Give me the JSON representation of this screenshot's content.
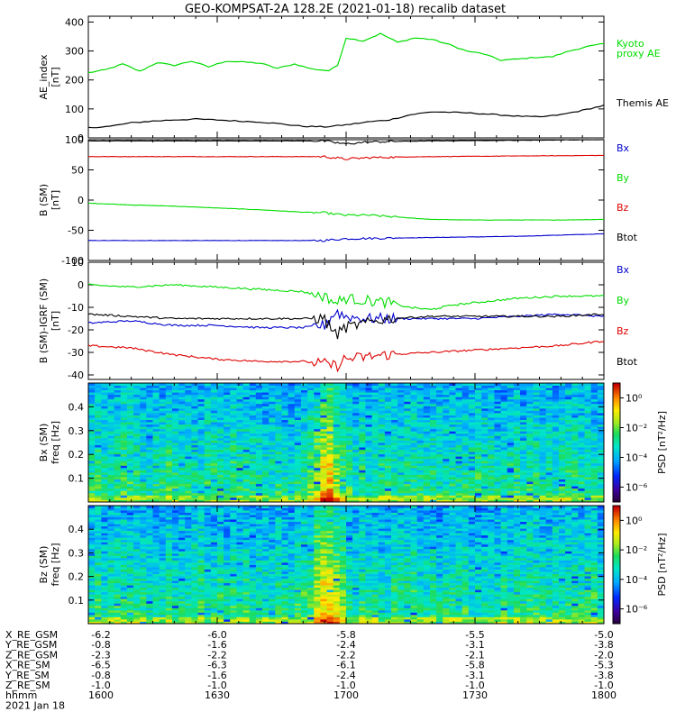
{
  "chart_data": {
    "title": "GEO-KOMPSAT-2A 128.2E (2021-01-18) recalib dataset",
    "type": "line",
    "panels": [
      {
        "id": "ae",
        "type": "line",
        "ylabel": [
          "AE_index",
          "[nT]"
        ],
        "ylim": [
          0,
          420
        ],
        "yticks": [
          0,
          100,
          200,
          300,
          400
        ],
        "series": [
          {
            "name": "Kyoto proxy AE",
            "label_lines": [
              "Kyoto",
              "proxy AE"
            ],
            "color": "#00dd00",
            "x": [
              1600,
              1604,
              1608,
              1612,
              1616,
              1620,
              1624,
              1628,
              1632,
              1636,
              1640,
              1644,
              1648,
              1652,
              1656,
              1658,
              1700,
              1704,
              1708,
              1712,
              1716,
              1720,
              1724,
              1728,
              1732,
              1736,
              1740,
              1744,
              1748,
              1752,
              1756,
              1760
            ],
            "y": [
              225,
              235,
              255,
              230,
              260,
              250,
              265,
              245,
              265,
              262,
              258,
              240,
              255,
              238,
              232,
              250,
              345,
              335,
              360,
              330,
              345,
              340,
              322,
              300,
              290,
              268,
              272,
              278,
              280,
              300,
              315,
              325
            ]
          },
          {
            "name": "Themis AE",
            "label_lines": [
              "Themis AE"
            ],
            "color": "#000000",
            "x": [
              1600,
              1605,
              1610,
              1615,
              1620,
              1625,
              1630,
              1635,
              1640,
              1645,
              1650,
              1655,
              1700,
              1705,
              1710,
              1715,
              1720,
              1725,
              1730,
              1735,
              1740,
              1745,
              1750,
              1755,
              1760
            ],
            "y": [
              35,
              40,
              52,
              58,
              62,
              65,
              62,
              58,
              55,
              48,
              40,
              38,
              45,
              55,
              62,
              80,
              90,
              88,
              85,
              80,
              75,
              72,
              80,
              95,
              112
            ]
          }
        ]
      },
      {
        "id": "b_sm",
        "type": "line",
        "ylabel": [
          "B (SM)",
          "[nT]"
        ],
        "ylim": [
          -100,
          100
        ],
        "yticks": [
          -100,
          -50,
          0,
          50,
          100
        ],
        "series": [
          {
            "name": "Bx",
            "color": "#0000cc",
            "x": [
              1600,
              1620,
              1640,
              1650,
              1655,
              1700,
              1710,
              1720,
              1730,
              1740,
              1750,
              1760
            ],
            "y": [
              -67,
              -67,
              -67,
              -67,
              -67,
              -64,
              -63,
              -62,
              -61,
              -60,
              -58,
              -56
            ]
          },
          {
            "name": "By",
            "color": "#00dd00",
            "x": [
              1600,
              1610,
              1620,
              1630,
              1640,
              1650,
              1655,
              1700,
              1705,
              1710,
              1720,
              1730,
              1740,
              1750,
              1760
            ],
            "y": [
              -5,
              -8,
              -10,
              -13,
              -16,
              -20,
              -21,
              -25,
              -25,
              -27,
              -32,
              -33,
              -33,
              -33,
              -32
            ]
          },
          {
            "name": "Bz",
            "color": "#dd0000",
            "x": [
              1600,
              1620,
              1640,
              1655,
              1700,
              1705,
              1710,
              1720,
              1740,
              1760
            ],
            "y": [
              72,
              72,
              72,
              72,
              68,
              70,
              71,
              72,
              73,
              74
            ]
          },
          {
            "name": "Btot",
            "color": "#000000",
            "x": [
              1600,
              1620,
              1640,
              1650,
              1655,
              1700,
              1705,
              1710,
              1720,
              1740,
              1760
            ],
            "y": [
              98,
              98,
              98,
              98,
              98,
              93,
              96,
              97,
              98,
              99,
              100
            ]
          }
        ]
      },
      {
        "id": "b_minus_igrf",
        "type": "line",
        "ylabel": [
          "B (SM)-IGRF (SM)",
          "[nT]"
        ],
        "ylim": [
          -42,
          10
        ],
        "yticks": [
          -40,
          -30,
          -20,
          -10,
          0,
          10
        ],
        "series": [
          {
            "name": "Bx",
            "color": "#0000cc",
            "x": [
              1600,
              1610,
              1620,
              1630,
              1640,
              1650,
              1655,
              1658,
              1700,
              1705,
              1710,
              1720,
              1730,
              1740,
              1750,
              1760
            ],
            "y": [
              -17,
              -16,
              -18,
              -18,
              -19,
              -19,
              -18,
              -12,
              -14,
              -15,
              -15,
              -15,
              -15,
              -14,
              -13,
              -14
            ]
          },
          {
            "name": "By",
            "color": "#00dd00",
            "x": [
              1600,
              1610,
              1620,
              1630,
              1640,
              1650,
              1655,
              1658,
              1700,
              1705,
              1710,
              1715,
              1720,
              1725,
              1730,
              1740,
              1750,
              1760
            ],
            "y": [
              0,
              -1,
              0,
              -1,
              -2,
              -3,
              -5,
              -8,
              -6,
              -7,
              -8,
              -10,
              -11,
              -9,
              -8,
              -6,
              -5,
              -5
            ]
          },
          {
            "name": "Bz",
            "color": "#dd0000",
            "x": [
              1600,
              1610,
              1620,
              1630,
              1640,
              1650,
              1655,
              1658,
              1700,
              1705,
              1710,
              1720,
              1730,
              1740,
              1750,
              1760
            ],
            "y": [
              -27,
              -28,
              -31,
              -33,
              -34,
              -34,
              -35,
              -36,
              -33,
              -32,
              -31,
              -30,
              -29,
              -28,
              -27,
              -25
            ]
          },
          {
            "name": "Btot",
            "color": "#000000",
            "x": [
              1600,
              1610,
              1620,
              1630,
              1640,
              1650,
              1655,
              1658,
              1700,
              1705,
              1710,
              1720,
              1730,
              1740,
              1750,
              1760
            ],
            "y": [
              -13,
              -14,
              -15,
              -15,
              -15,
              -15,
              -15,
              -22,
              -19,
              -17,
              -15,
              -14,
              -14,
              -14,
              -14,
              -13
            ]
          }
        ]
      },
      {
        "id": "bx_spec",
        "type": "heatmap",
        "ylabel": [
          "Bx (SM)",
          "freq [Hz]"
        ],
        "ylim": [
          0,
          0.5
        ],
        "yticks": [
          0.1,
          0.2,
          0.3,
          0.4
        ],
        "colorbar": {
          "label": "PSD [nT²/Hz]",
          "ticks": [
            "10⁰",
            "10⁻²",
            "10⁻⁴",
            "10⁻⁶"
          ],
          "range_exp": [
            -7,
            1
          ]
        }
      },
      {
        "id": "bz_spec",
        "type": "heatmap",
        "ylabel": [
          "Bz (SM)",
          "freq [Hz]"
        ],
        "ylim": [
          0,
          0.5
        ],
        "yticks": [
          0.1,
          0.2,
          0.3,
          0.4
        ],
        "colorbar": {
          "label": "PSD [nT²/Hz]",
          "ticks": [
            "10⁰",
            "10⁻²",
            "10⁻⁴",
            "10⁻⁶"
          ],
          "range_exp": [
            -7,
            1
          ]
        }
      }
    ],
    "xlim": [
      1600,
      1800
    ],
    "ephemeris": {
      "labels": [
        "X_RE_GSM",
        "Y_RE_GSM",
        "Z_RE_GSM",
        "X_RE_SM",
        "Y_RE_SM",
        "Z_RE_SM",
        "hhmm",
        "2021 Jan 18"
      ],
      "columns": [
        [
          "-6.2",
          "-0.8",
          "-2.3",
          "-6.5",
          "-0.8",
          "-1.0",
          "1600"
        ],
        [
          "-6.0",
          "-1.6",
          "-2.2",
          "-6.3",
          "-1.6",
          "-1.0",
          "1630"
        ],
        [
          "-5.8",
          "-2.4",
          "-2.2",
          "-6.1",
          "-2.4",
          "-1.0",
          "1700"
        ],
        [
          "-5.5",
          "-3.1",
          "-2.1",
          "-5.8",
          "-3.1",
          "-1.0",
          "1730"
        ],
        [
          "-5.0",
          "-3.8",
          "-2.0",
          "-5.3",
          "-3.8",
          "-1.0",
          "1800"
        ]
      ]
    }
  }
}
